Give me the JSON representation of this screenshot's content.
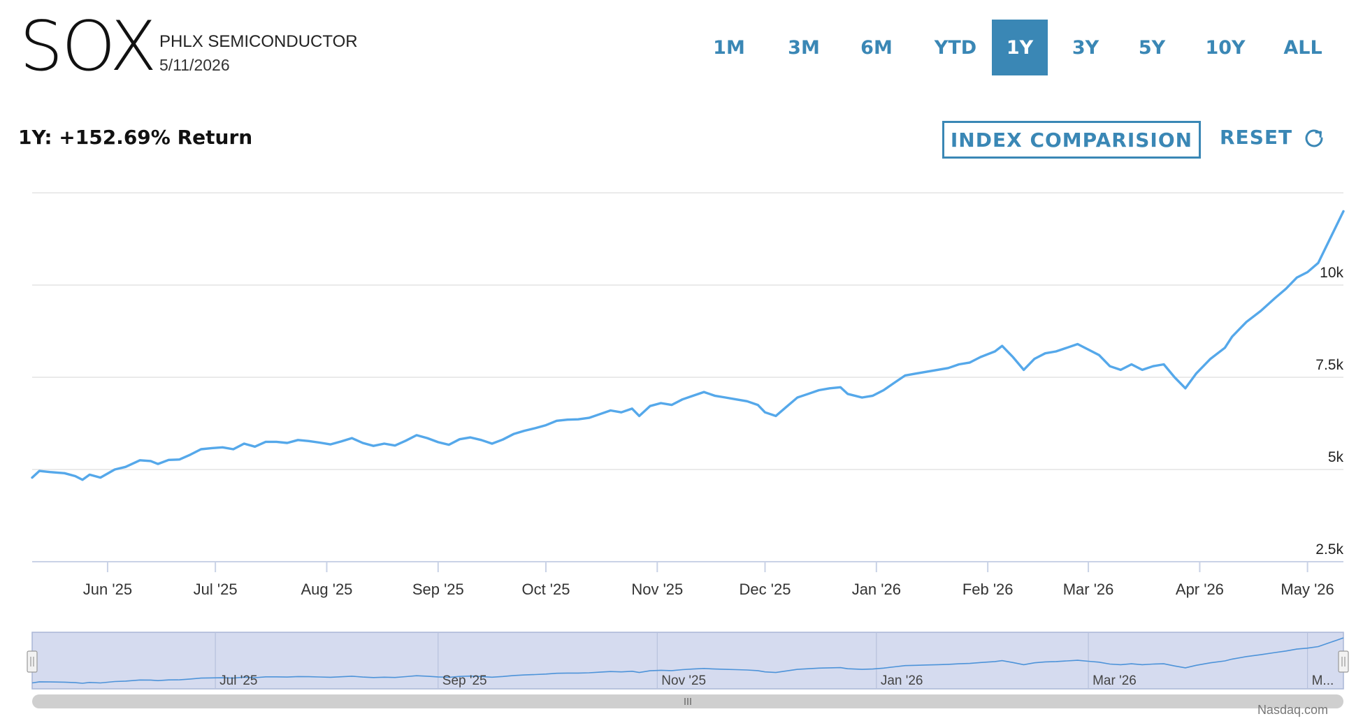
{
  "header": {
    "symbol": "SOX",
    "name": "PHLX SEMICONDUCTOR",
    "date": "5/11/2026"
  },
  "range_tabs": [
    {
      "label": "1M",
      "active": false
    },
    {
      "label": "3M",
      "active": false
    },
    {
      "label": "6M",
      "active": false
    },
    {
      "label": "YTD",
      "active": false
    },
    {
      "label": "1Y",
      "active": true
    },
    {
      "label": "3Y",
      "active": false
    },
    {
      "label": "5Y",
      "active": false
    },
    {
      "label": "10Y",
      "active": false
    },
    {
      "label": "ALL",
      "active": false
    }
  ],
  "summary": {
    "return_label": "1Y: +152.69% Return"
  },
  "controls": {
    "compare_label": "INDEX COMPARISION",
    "reset_label": "RESET",
    "reset_icon": "refresh-icon"
  },
  "credit": "Nasdaq.com",
  "colors": {
    "accent": "#3a87b5",
    "line": "#55a8ea",
    "navigator_fill": "#d5dbef",
    "grid": "#e3e3e3"
  },
  "chart_data": {
    "type": "line",
    "title": "",
    "xlabel": "",
    "ylabel": "",
    "ylim": [
      2500,
      12500
    ],
    "y_ticks": [
      {
        "value": 2500,
        "label": "2.5k"
      },
      {
        "value": 5000,
        "label": "5k"
      },
      {
        "value": 7500,
        "label": "7.5k"
      },
      {
        "value": 10000,
        "label": "10k"
      }
    ],
    "x_range": [
      "2025-05-11",
      "2026-05-11"
    ],
    "x_ticks": [
      {
        "date": "2025-06-01",
        "label": "Jun '25"
      },
      {
        "date": "2025-07-01",
        "label": "Jul '25"
      },
      {
        "date": "2025-08-01",
        "label": "Aug '25"
      },
      {
        "date": "2025-09-01",
        "label": "Sep '25"
      },
      {
        "date": "2025-10-01",
        "label": "Oct '25"
      },
      {
        "date": "2025-11-01",
        "label": "Nov '25"
      },
      {
        "date": "2025-12-01",
        "label": "Dec '25"
      },
      {
        "date": "2026-01-01",
        "label": "Jan '26"
      },
      {
        "date": "2026-02-01",
        "label": "Feb '26"
      },
      {
        "date": "2026-03-01",
        "label": "Mar '26"
      },
      {
        "date": "2026-04-01",
        "label": "Apr '26"
      },
      {
        "date": "2026-05-01",
        "label": "May '26"
      }
    ],
    "navigator_labels": [
      {
        "date": "2025-07-01",
        "label": "Jul '25"
      },
      {
        "date": "2025-09-01",
        "label": "Sep '25"
      },
      {
        "date": "2025-11-01",
        "label": "Nov '25"
      },
      {
        "date": "2026-01-01",
        "label": "Jan '26"
      },
      {
        "date": "2026-03-01",
        "label": "Mar '26"
      },
      {
        "date": "2026-05-01",
        "label": "M..."
      }
    ],
    "grid": true,
    "series": [
      {
        "points": [
          [
            "2025-05-11",
            4780
          ],
          [
            "2025-05-13",
            4960
          ],
          [
            "2025-05-16",
            4930
          ],
          [
            "2025-05-20",
            4900
          ],
          [
            "2025-05-23",
            4820
          ],
          [
            "2025-05-25",
            4720
          ],
          [
            "2025-05-27",
            4860
          ],
          [
            "2025-05-30",
            4780
          ],
          [
            "2025-06-03",
            5000
          ],
          [
            "2025-06-06",
            5070
          ],
          [
            "2025-06-10",
            5250
          ],
          [
            "2025-06-13",
            5230
          ],
          [
            "2025-06-15",
            5150
          ],
          [
            "2025-06-18",
            5260
          ],
          [
            "2025-06-21",
            5270
          ],
          [
            "2025-06-24",
            5400
          ],
          [
            "2025-06-27",
            5550
          ],
          [
            "2025-06-30",
            5580
          ],
          [
            "2025-07-03",
            5600
          ],
          [
            "2025-07-06",
            5550
          ],
          [
            "2025-07-09",
            5700
          ],
          [
            "2025-07-12",
            5620
          ],
          [
            "2025-07-15",
            5750
          ],
          [
            "2025-07-18",
            5750
          ],
          [
            "2025-07-21",
            5720
          ],
          [
            "2025-07-24",
            5800
          ],
          [
            "2025-07-27",
            5770
          ],
          [
            "2025-07-30",
            5730
          ],
          [
            "2025-08-02",
            5680
          ],
          [
            "2025-08-05",
            5760
          ],
          [
            "2025-08-08",
            5850
          ],
          [
            "2025-08-11",
            5720
          ],
          [
            "2025-08-14",
            5640
          ],
          [
            "2025-08-17",
            5700
          ],
          [
            "2025-08-20",
            5650
          ],
          [
            "2025-08-23",
            5780
          ],
          [
            "2025-08-26",
            5930
          ],
          [
            "2025-08-29",
            5850
          ],
          [
            "2025-09-01",
            5740
          ],
          [
            "2025-09-04",
            5670
          ],
          [
            "2025-09-07",
            5820
          ],
          [
            "2025-09-10",
            5870
          ],
          [
            "2025-09-13",
            5800
          ],
          [
            "2025-09-16",
            5700
          ],
          [
            "2025-09-19",
            5810
          ],
          [
            "2025-09-22",
            5960
          ],
          [
            "2025-09-25",
            6050
          ],
          [
            "2025-09-28",
            6120
          ],
          [
            "2025-10-01",
            6200
          ],
          [
            "2025-10-04",
            6320
          ],
          [
            "2025-10-07",
            6350
          ],
          [
            "2025-10-10",
            6360
          ],
          [
            "2025-10-13",
            6400
          ],
          [
            "2025-10-16",
            6500
          ],
          [
            "2025-10-19",
            6600
          ],
          [
            "2025-10-22",
            6550
          ],
          [
            "2025-10-25",
            6650
          ],
          [
            "2025-10-27",
            6450
          ],
          [
            "2025-10-30",
            6720
          ],
          [
            "2025-11-02",
            6800
          ],
          [
            "2025-11-05",
            6750
          ],
          [
            "2025-11-08",
            6900
          ],
          [
            "2025-11-11",
            7000
          ],
          [
            "2025-11-14",
            7100
          ],
          [
            "2025-11-17",
            7000
          ],
          [
            "2025-11-20",
            6950
          ],
          [
            "2025-11-23",
            6900
          ],
          [
            "2025-11-26",
            6850
          ],
          [
            "2025-11-29",
            6750
          ],
          [
            "2025-12-01",
            6550
          ],
          [
            "2025-12-04",
            6450
          ],
          [
            "2025-12-07",
            6700
          ],
          [
            "2025-12-10",
            6950
          ],
          [
            "2025-12-13",
            7050
          ],
          [
            "2025-12-16",
            7150
          ],
          [
            "2025-12-19",
            7200
          ],
          [
            "2025-12-22",
            7230
          ],
          [
            "2025-12-24",
            7050
          ],
          [
            "2025-12-28",
            6950
          ],
          [
            "2025-12-31",
            7000
          ],
          [
            "2026-01-03",
            7150
          ],
          [
            "2026-01-06",
            7350
          ],
          [
            "2026-01-09",
            7550
          ],
          [
            "2026-01-12",
            7600
          ],
          [
            "2026-01-15",
            7650
          ],
          [
            "2026-01-18",
            7700
          ],
          [
            "2026-01-21",
            7750
          ],
          [
            "2026-01-24",
            7850
          ],
          [
            "2026-01-27",
            7900
          ],
          [
            "2026-01-30",
            8050
          ],
          [
            "2026-02-03",
            8200
          ],
          [
            "2026-02-05",
            8350
          ],
          [
            "2026-02-08",
            8050
          ],
          [
            "2026-02-11",
            7700
          ],
          [
            "2026-02-14",
            8000
          ],
          [
            "2026-02-17",
            8150
          ],
          [
            "2026-02-20",
            8200
          ],
          [
            "2026-02-23",
            8300
          ],
          [
            "2026-02-26",
            8400
          ],
          [
            "2026-03-01",
            8250
          ],
          [
            "2026-03-04",
            8100
          ],
          [
            "2026-03-07",
            7800
          ],
          [
            "2026-03-10",
            7700
          ],
          [
            "2026-03-13",
            7850
          ],
          [
            "2026-03-16",
            7700
          ],
          [
            "2026-03-19",
            7800
          ],
          [
            "2026-03-22",
            7850
          ],
          [
            "2026-03-25",
            7500
          ],
          [
            "2026-03-28",
            7200
          ],
          [
            "2026-03-31",
            7600
          ],
          [
            "2026-04-04",
            8000
          ],
          [
            "2026-04-08",
            8300
          ],
          [
            "2026-04-10",
            8600
          ],
          [
            "2026-04-14",
            9000
          ],
          [
            "2026-04-18",
            9300
          ],
          [
            "2026-04-22",
            9650
          ],
          [
            "2026-04-25",
            9900
          ],
          [
            "2026-04-28",
            10200
          ],
          [
            "2026-05-01",
            10350
          ],
          [
            "2026-05-04",
            10600
          ],
          [
            "2026-05-07",
            11200
          ],
          [
            "2026-05-09",
            11600
          ],
          [
            "2026-05-11",
            12000
          ]
        ]
      }
    ]
  }
}
